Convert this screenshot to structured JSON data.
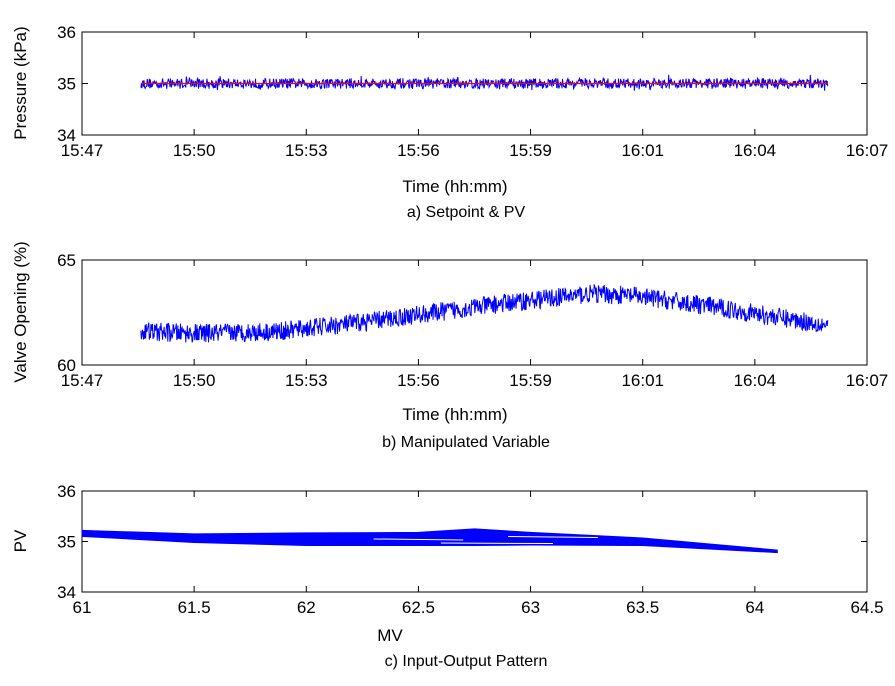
{
  "chart_data": [
    {
      "type": "line",
      "caption": "a) Setpoint & PV",
      "xlabel": "Time (hh:mm)",
      "ylabel": "Pressure (kPa)",
      "xticks": [
        "15:47",
        "15:50",
        "15:53",
        "15:56",
        "15:59",
        "16:01",
        "16:04",
        "16:07"
      ],
      "yticks": [
        "34",
        "35",
        "36"
      ],
      "ylim": [
        34,
        36
      ],
      "grid": false,
      "series": [
        {
          "role": "setpoint",
          "color": "#ff0000",
          "x": [
            "15:48.5",
            "16:06"
          ],
          "y": [
            35.0,
            35.0
          ]
        },
        {
          "role": "pv",
          "color": "#0000ff",
          "x": [
            "15:48.5",
            "16:06"
          ],
          "y_mean": 35.0,
          "y_noise_band": [
            34.85,
            35.22
          ]
        }
      ]
    },
    {
      "type": "line",
      "caption": "b) Manipulated Variable",
      "xlabel": "Time (hh:mm)",
      "ylabel": "Valve Opening (%)",
      "xticks": [
        "15:47",
        "15:50",
        "15:53",
        "15:56",
        "15:59",
        "16:01",
        "16:04",
        "16:07"
      ],
      "yticks": [
        "60",
        "65"
      ],
      "ylim": [
        60,
        65
      ],
      "grid": false,
      "series": [
        {
          "role": "mv",
          "color": "#0000ff",
          "x": [
            "15:48.5",
            "15:50",
            "15:52",
            "15:54",
            "15:56",
            "15:58",
            "16:00",
            "16:01",
            "16:03",
            "16:05",
            "16:06"
          ],
          "y": [
            61.6,
            61.5,
            61.6,
            62.0,
            62.5,
            63.0,
            63.4,
            63.3,
            62.8,
            62.2,
            61.9
          ],
          "noise_amplitude": 0.45
        }
      ]
    },
    {
      "type": "scatter",
      "caption": "c) Input-Output Pattern",
      "xlabel": "MV",
      "ylabel": "PV",
      "xticks": [
        "61",
        "61.5",
        "62",
        "62.5",
        "63",
        "63.5",
        "64",
        "64.5"
      ],
      "yticks": [
        "34",
        "35",
        "36"
      ],
      "xlim": [
        61,
        64.5
      ],
      "ylim": [
        34,
        36
      ],
      "grid": false,
      "series": [
        {
          "role": "pattern",
          "color": "#0000ff",
          "x": [
            61.0,
            61.5,
            62.0,
            62.5,
            62.75,
            63.0,
            63.5,
            64.1
          ],
          "y_top": [
            35.22,
            35.15,
            35.17,
            35.18,
            35.25,
            35.18,
            35.07,
            34.83
          ],
          "y_bot": [
            35.1,
            34.98,
            34.92,
            34.92,
            34.92,
            34.93,
            34.92,
            34.78
          ]
        }
      ]
    }
  ]
}
